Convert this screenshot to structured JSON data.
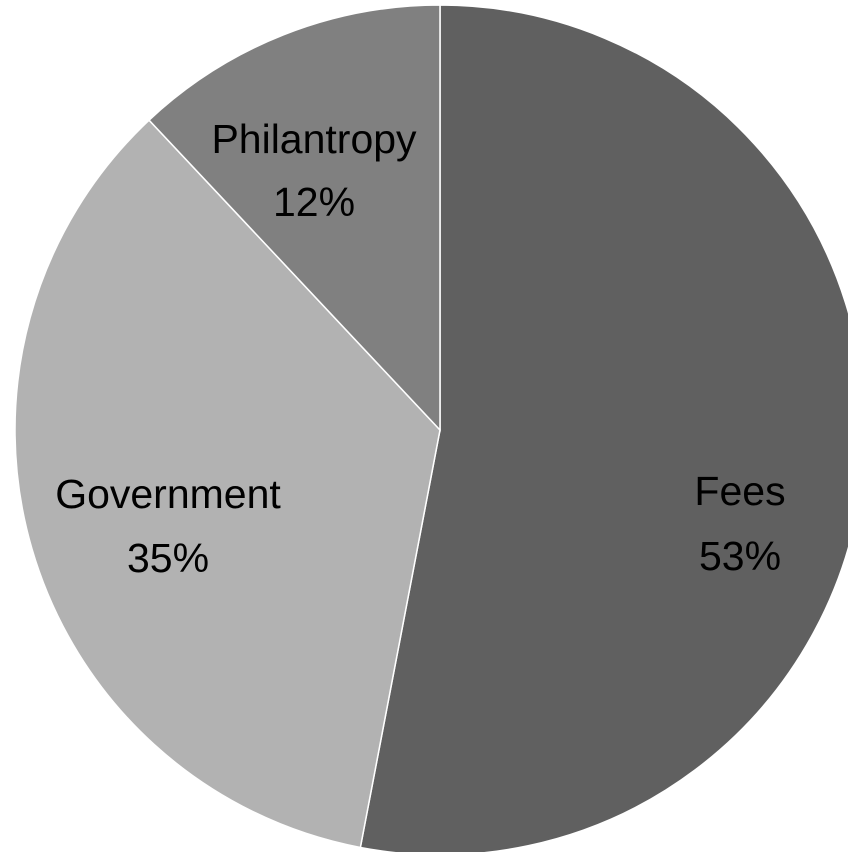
{
  "chart_data": {
    "type": "pie",
    "title": "",
    "start_angle_deg": 0,
    "direction": "clockwise",
    "legend": "none",
    "slices": [
      {
        "name": "Fees",
        "value": 53,
        "percent_label": "53%",
        "color": "#606060"
      },
      {
        "name": "Government",
        "value": 35,
        "percent_label": "35%",
        "color": "#b2b2b2"
      },
      {
        "name": "Philantropy",
        "value": 12,
        "percent_label": "12%",
        "color": "#808080"
      }
    ]
  }
}
